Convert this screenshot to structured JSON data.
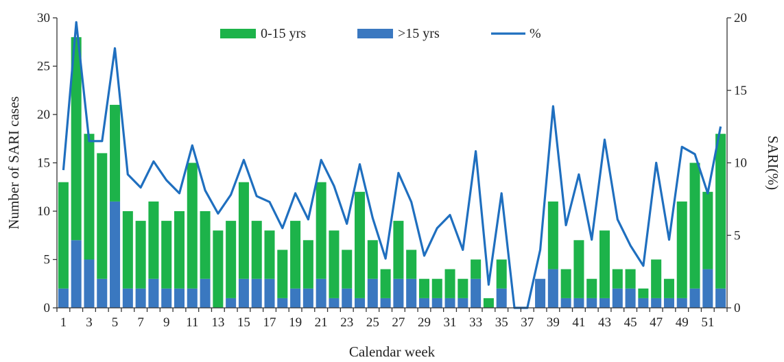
{
  "chart_data": {
    "type": "bar",
    "stacked": true,
    "xlabel": "Calendar week",
    "ylabel": "Number of  SARI cases",
    "y2label": "SARI(%)",
    "ylim": [
      0,
      30
    ],
    "y2lim": [
      0,
      20
    ],
    "yticks": [
      0,
      5,
      10,
      15,
      20,
      25,
      30
    ],
    "y2ticks": [
      0,
      5,
      10,
      15,
      20
    ],
    "categories": [
      1,
      2,
      3,
      4,
      5,
      6,
      7,
      8,
      9,
      10,
      11,
      12,
      13,
      14,
      15,
      16,
      17,
      18,
      19,
      20,
      21,
      22,
      23,
      24,
      25,
      26,
      27,
      28,
      29,
      30,
      31,
      32,
      33,
      34,
      35,
      36,
      37,
      38,
      39,
      40,
      41,
      42,
      43,
      44,
      45,
      46,
      47,
      48,
      49,
      50,
      51,
      52
    ],
    "xtick_labels": [
      "1",
      "3",
      "5",
      "7",
      "9",
      "11",
      "13",
      "15",
      "17",
      "19",
      "21",
      "23",
      "25",
      "27",
      "29",
      "31",
      "33",
      "35",
      "37",
      "39",
      "41",
      "43",
      "45",
      "47",
      "49",
      "51"
    ],
    "legend_position": "top-center",
    "grid": false,
    "series": [
      {
        "name": ">15 yrs",
        "kind": "bar",
        "axis": "left",
        "color": "#3a78c0",
        "values": [
          2,
          7,
          5,
          3,
          11,
          2,
          2,
          3,
          2,
          2,
          2,
          3,
          0,
          1,
          3,
          3,
          3,
          1,
          2,
          2,
          3,
          1,
          2,
          1,
          3,
          1,
          3,
          3,
          1,
          1,
          1,
          1,
          3,
          0,
          2,
          0,
          0,
          3,
          4,
          1,
          1,
          1,
          1,
          2,
          2,
          1,
          1,
          1,
          1,
          2,
          4,
          2
        ]
      },
      {
        "name": "0-15 yrs",
        "kind": "bar",
        "axis": "left",
        "color": "#1db34a",
        "values": [
          11,
          21,
          13,
          13,
          10,
          8,
          7,
          8,
          7,
          8,
          13,
          7,
          8,
          8,
          10,
          6,
          5,
          5,
          7,
          5,
          10,
          7,
          4,
          11,
          4,
          3,
          6,
          3,
          2,
          2,
          3,
          2,
          2,
          1,
          3,
          0,
          0,
          0,
          7,
          3,
          6,
          2,
          7,
          2,
          2,
          1,
          4,
          2,
          10,
          13,
          8,
          16
        ]
      },
      {
        "name": "%",
        "kind": "line",
        "axis": "right",
        "color": "#1f6fbf",
        "values": [
          9.5,
          19.7,
          11.5,
          11.5,
          17.9,
          9.2,
          8.3,
          10.1,
          8.8,
          7.9,
          11.2,
          8.1,
          6.5,
          7.8,
          10.2,
          7.7,
          7.3,
          5.5,
          7.9,
          6.1,
          10.2,
          8.4,
          5.8,
          9.9,
          6.2,
          3.4,
          9.3,
          7.3,
          3.6,
          5.5,
          6.4,
          4.0,
          10.8,
          1.6,
          7.9,
          0.0,
          0.0,
          4.0,
          13.9,
          5.7,
          9.2,
          4.7,
          11.6,
          6.1,
          4.3,
          2.9,
          10.0,
          4.7,
          11.1,
          10.6,
          7.9,
          12.5
        ]
      }
    ]
  }
}
